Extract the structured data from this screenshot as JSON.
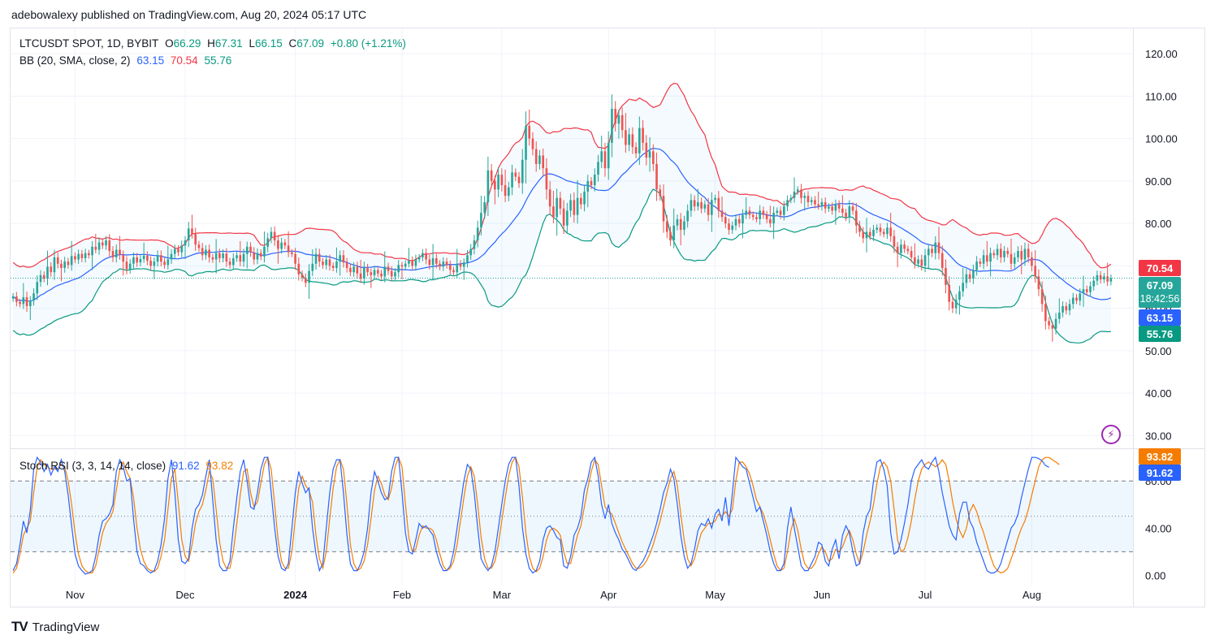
{
  "header": {
    "published": "adebowalexy published on TradingView.com, Aug 20, 2024 05:17 UTC"
  },
  "legend": {
    "symbol": "LTCUSDT SPOT, 1D, BYBIT",
    "o_label": "O",
    "o_value": "66.29",
    "h_label": "H",
    "h_value": "67.31",
    "l_label": "L",
    "l_value": "66.15",
    "c_label": "C",
    "c_value": "67.09",
    "change": "+0.80 (+1.21%)",
    "bb_label": "BB (20, SMA, close, 2)",
    "bb_basis": "63.15",
    "bb_upper": "70.54",
    "bb_lower": "55.76",
    "stoch_label": "Stoch RSI (3, 3, 14, 14, close)",
    "stoch_k": "91.62",
    "stoch_d": "93.82"
  },
  "tags": {
    "upper": "70.54",
    "price": "67.09",
    "countdown": "18:42:56",
    "basis": "63.15",
    "lower": "55.76",
    "stoch_d": "93.82",
    "stoch_k": "91.62"
  },
  "footer": {
    "logo": "TV",
    "brand": "TradingView"
  },
  "colors": {
    "up": "#26a69a",
    "down": "#ef5350",
    "basis": "#2962ff",
    "upper": "#f23645",
    "lower": "#089981",
    "band_fill": "#e3f2fd",
    "k": "#2962ff",
    "d": "#f57c00"
  },
  "chart_data": [
    {
      "type": "candlestick",
      "title": "LTCUSDT SPOT, 1D, BYBIT",
      "ylim": [
        27,
        125
      ],
      "y_ticks": [
        "120.00",
        "110.00",
        "100.00",
        "90.00",
        "80.00",
        "70.00",
        "60.00",
        "50.00",
        "40.00",
        "30.00"
      ],
      "x_ticks": [
        "Nov",
        "Dec",
        "2024",
        "Feb",
        "Mar",
        "Apr",
        "May",
        "Jun",
        "Jul",
        "Aug"
      ],
      "x_tick_index": [
        18,
        50,
        82,
        113,
        142,
        173,
        204,
        235,
        265,
        296
      ],
      "close": [
        62.8,
        61.5,
        61.0,
        62.6,
        60.5,
        61.8,
        63.5,
        66.2,
        67.8,
        67.0,
        69.8,
        68.5,
        72.0,
        70.5,
        69.5,
        71.0,
        70.2,
        72.3,
        71.5,
        72.8,
        71.8,
        73.0,
        72.5,
        74.5,
        73.8,
        75.5,
        74.8,
        76.0,
        73.5,
        72.0,
        73.8,
        72.5,
        71.0,
        69.2,
        70.5,
        72.0,
        70.8,
        71.6,
        72.4,
        71.2,
        70.0,
        71.0,
        72.5,
        71.0,
        70.2,
        71.5,
        72.8,
        74.0,
        73.2,
        74.8,
        76.0,
        78.8,
        77.5,
        75.0,
        74.2,
        72.5,
        73.8,
        72.0,
        71.5,
        73.0,
        71.8,
        72.9,
        71.0,
        70.2,
        71.8,
        72.5,
        71.0,
        72.8,
        74.5,
        73.2,
        71.5,
        73.0,
        72.2,
        74.5,
        76.5,
        78.0,
        76.0,
        74.0,
        75.5,
        74.8,
        73.2,
        72.8,
        70.5,
        68.0,
        67.2,
        66.0,
        68.8,
        70.5,
        72.8,
        71.0,
        70.2,
        71.5,
        70.0,
        69.5,
        71.0,
        72.5,
        70.8,
        69.5,
        68.5,
        69.8,
        68.2,
        67.0,
        69.5,
        68.5,
        67.8,
        69.0,
        68.2,
        67.5,
        69.8,
        68.8,
        67.5,
        68.5,
        70.2,
        69.8,
        70.5,
        71.2,
        70.0,
        71.5,
        72.0,
        73.0,
        71.5,
        70.2,
        71.8,
        70.5,
        69.8,
        71.0,
        70.2,
        69.0,
        68.5,
        70.5,
        69.8,
        70.8,
        72.5,
        74.0,
        76.0,
        79.0,
        82.5,
        85.0,
        92.5,
        90.0,
        88.0,
        91.5,
        89.0,
        86.5,
        88.5,
        92.0,
        91.0,
        89.5,
        95.0,
        103.0,
        100.0,
        97.5,
        94.0,
        96.0,
        93.0,
        88.0,
        84.0,
        81.5,
        86.0,
        83.5,
        79.5,
        83.0,
        85.5,
        82.0,
        86.0,
        84.5,
        87.5,
        90.0,
        89.0,
        91.5,
        94.5,
        97.0,
        93.0,
        99.0,
        107.0,
        103.5,
        105.5,
        102.0,
        98.5,
        101.0,
        98.0,
        96.5,
        102.5,
        99.0,
        95.5,
        97.0,
        94.0,
        88.0,
        86.5,
        80.5,
        78.0,
        76.0,
        79.5,
        81.0,
        78.5,
        80.5,
        83.0,
        85.5,
        84.0,
        85.0,
        83.5,
        84.5,
        82.0,
        85.5,
        86.0,
        83.0,
        81.5,
        80.0,
        78.5,
        79.5,
        81.0,
        80.0,
        82.0,
        83.0,
        82.0,
        81.5,
        81.0,
        83.0,
        82.0,
        81.0,
        80.0,
        82.5,
        83.0,
        82.0,
        84.0,
        85.5,
        86.0,
        87.5,
        88.0,
        86.0,
        86.5,
        85.0,
        85.5,
        84.5,
        84.0,
        85.0,
        83.5,
        84.0,
        83.0,
        84.5,
        83.5,
        82.5,
        81.5,
        84.0,
        83.0,
        79.5,
        78.0,
        76.5,
        78.0,
        77.0,
        78.5,
        79.0,
        78.0,
        77.5,
        79.0,
        77.0,
        74.5,
        73.0,
        75.0,
        74.0,
        73.5,
        72.0,
        70.5,
        71.5,
        70.0,
        72.5,
        74.0,
        73.0,
        75.5,
        73.0,
        69.5,
        65.5,
        61.5,
        60.0,
        62.0,
        64.0,
        66.0,
        68.0,
        67.0,
        69.0,
        71.0,
        70.5,
        72.5,
        71.0,
        73.0,
        72.5,
        74.0,
        72.0,
        73.5,
        72.8,
        70.5,
        72.0,
        73.5,
        71.5,
        74.0,
        72.0,
        70.0,
        67.5,
        64.5,
        61.0,
        57.0,
        56.0,
        55.2,
        57.5,
        59.0,
        60.5,
        59.5,
        61.0,
        62.5,
        61.8,
        63.5,
        64.5,
        63.8,
        65.2,
        66.5,
        67.8,
        66.8,
        67.5,
        66.3,
        67.09
      ]
    },
    {
      "type": "line",
      "title": "Stoch RSI (3, 3, 14, 14, close)",
      "ylim": [
        -8,
        107
      ],
      "y_ticks": [
        "0.00",
        "40.00",
        "80.00"
      ],
      "bands": [
        20,
        50,
        80
      ],
      "series": [
        {
          "name": "K",
          "values": [
            4,
            10,
            26,
            46,
            36,
            55,
            90,
            100,
            96,
            88,
            94,
            85,
            92,
            88,
            98,
            88,
            68,
            42,
            18,
            8,
            4,
            1,
            2,
            4,
            16,
            34,
            46,
            48,
            52,
            60,
            88,
            98,
            92,
            80,
            82,
            48,
            20,
            10,
            8,
            4,
            2,
            4,
            12,
            26,
            48,
            82,
            98,
            70,
            30,
            12,
            10,
            14,
            40,
            56,
            60,
            68,
            84,
            98,
            64,
            30,
            8,
            4,
            4,
            12,
            40,
            66,
            88,
            98,
            80,
            58,
            56,
            70,
            90,
            100,
            100,
            70,
            40,
            16,
            6,
            4,
            10,
            40,
            70,
            88,
            78,
            70,
            74,
            40,
            18,
            4,
            10,
            40,
            70,
            90,
            98,
            98,
            70,
            34,
            10,
            4,
            4,
            10,
            20,
            40,
            70,
            88,
            80,
            70,
            64,
            66,
            88,
            100,
            100,
            70,
            36,
            20,
            18,
            30,
            44,
            40,
            42,
            38,
            34,
            20,
            10,
            4,
            4,
            8,
            20,
            40,
            60,
            80,
            94,
            90,
            70,
            40,
            14,
            8,
            4,
            8,
            20,
            40,
            60,
            80,
            94,
            100,
            100,
            76,
            40,
            18,
            6,
            2,
            4,
            12,
            30,
            40,
            42,
            38,
            32,
            30,
            8,
            6,
            16,
            34,
            40,
            50,
            72,
            82,
            96,
            100,
            84,
            60,
            48,
            60,
            44,
            36,
            30,
            22,
            18,
            12,
            6,
            4,
            8,
            12,
            18,
            26,
            34,
            44,
            56,
            70,
            78,
            90,
            82,
            60,
            34,
            16,
            6,
            10,
            22,
            38,
            44,
            42,
            48,
            40,
            52,
            56,
            46,
            66,
            42,
            70,
            100,
            96,
            92,
            90,
            78,
            66,
            54,
            58,
            46,
            34,
            20,
            10,
            4,
            4,
            10,
            40,
            58,
            40,
            24,
            8,
            4,
            4,
            10,
            16,
            28,
            26,
            12,
            8,
            22,
            30,
            14,
            34,
            42,
            36,
            20,
            8,
            10,
            36,
            50,
            56,
            80,
            96,
            98,
            90,
            76,
            36,
            18,
            20,
            30,
            44,
            60,
            80,
            90,
            94,
            98,
            92,
            90,
            96,
            100,
            88,
            70,
            56,
            42,
            34,
            30,
            52,
            62,
            62,
            46,
            40,
            28,
            20,
            12,
            4,
            2,
            2,
            4,
            10,
            20,
            30,
            40,
            44,
            52,
            66,
            78,
            90,
            100,
            100,
            99,
            97,
            93,
            91.62
          ]
        },
        {
          "name": "D",
          "values": [
            2,
            6,
            18,
            34,
            40,
            46,
            70,
            92,
            98,
            94,
            92,
            90,
            90,
            90,
            94,
            92,
            80,
            60,
            36,
            18,
            8,
            4,
            2,
            2,
            8,
            22,
            36,
            44,
            48,
            54,
            72,
            90,
            96,
            88,
            82,
            66,
            40,
            22,
            12,
            6,
            4,
            3,
            6,
            16,
            30,
            56,
            82,
            90,
            62,
            30,
            16,
            12,
            26,
            44,
            54,
            60,
            72,
            88,
            82,
            56,
            28,
            12,
            6,
            6,
            20,
            44,
            68,
            88,
            90,
            70,
            58,
            62,
            78,
            94,
            100,
            90,
            60,
            30,
            12,
            6,
            6,
            20,
            48,
            74,
            84,
            76,
            72,
            62,
            34,
            14,
            6,
            20,
            48,
            74,
            92,
            98,
            90,
            60,
            26,
            10,
            4,
            6,
            12,
            26,
            48,
            72,
            84,
            78,
            68,
            64,
            74,
            92,
            100,
            92,
            60,
            32,
            20,
            22,
            34,
            42,
            40,
            40,
            38,
            30,
            18,
            8,
            4,
            6,
            12,
            26,
            46,
            66,
            84,
            92,
            84,
            60,
            32,
            14,
            6,
            6,
            12,
            26,
            46,
            66,
            84,
            96,
            100,
            92,
            66,
            36,
            16,
            6,
            3,
            6,
            16,
            30,
            38,
            40,
            38,
            34,
            20,
            10,
            10,
            22,
            34,
            42,
            58,
            74,
            88,
            98,
            94,
            76,
            58,
            54,
            52,
            44,
            36,
            28,
            22,
            16,
            10,
            6,
            6,
            8,
            12,
            18,
            26,
            36,
            46,
            58,
            70,
            82,
            88,
            76,
            52,
            30,
            14,
            8,
            14,
            26,
            36,
            40,
            44,
            44,
            46,
            52,
            50,
            54,
            50,
            56,
            80,
            96,
            96,
            92,
            86,
            76,
            64,
            58,
            52,
            42,
            30,
            18,
            8,
            4,
            6,
            20,
            38,
            48,
            38,
            22,
            10,
            6,
            6,
            10,
            18,
            24,
            20,
            12,
            14,
            22,
            20,
            24,
            32,
            38,
            30,
            18,
            10,
            20,
            34,
            46,
            60,
            78,
            92,
            96,
            92,
            80,
            56,
            30,
            20,
            22,
            32,
            46,
            64,
            80,
            90,
            94,
            96,
            94,
            92,
            94,
            98,
            94,
            80,
            62,
            48,
            38,
            32,
            40,
            54,
            60,
            54,
            44,
            36,
            26,
            16,
            8,
            4,
            2,
            3,
            6,
            14,
            22,
            32,
            40,
            46,
            56,
            68,
            80,
            92,
            98,
            100,
            100,
            98,
            96,
            93.82
          ]
        }
      ]
    }
  ]
}
